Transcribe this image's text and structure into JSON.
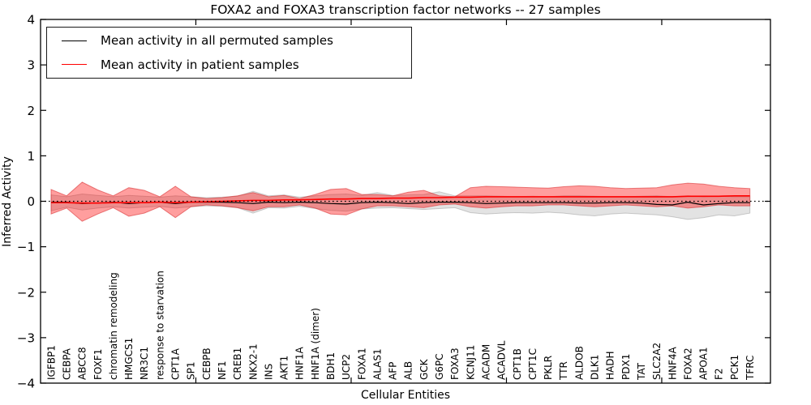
{
  "window": {
    "title": "FOXA2 and FOXA3 transcription factor networks -- 27 samples"
  },
  "legend": {
    "entries": [
      {
        "label": "Mean activity in all permuted samples",
        "color": "#000000"
      },
      {
        "label": "Mean activity in patient samples",
        "color": "#ff0000"
      }
    ],
    "position": "upper left",
    "border_color": "#1a1a1a"
  },
  "colors": {
    "permuted_line": "#000000",
    "patient_line": "#ff0000",
    "permuted_band_fill": "rgba(100,100,100,0.18)",
    "permuted_band_edge": "rgba(100,100,100,0.30)",
    "patient_band_fill": "rgba(255,0,0,0.38)",
    "patient_band_edge": "rgba(214,39,40,0.55)",
    "zero_line": "#000000",
    "axis": "#000000",
    "background": "#ffffff"
  },
  "chart_data": {
    "type": "line",
    "title": "FOXA2 and FOXA3 transcription factor networks -- 27 samples",
    "xlabel": "Cellular Entities",
    "ylabel": "Inferred Activity",
    "ylim": [
      -4,
      4
    ],
    "yticks": [
      -4,
      -3,
      -2,
      -1,
      0,
      1,
      2,
      3,
      4
    ],
    "xlim": [
      0,
      47
    ],
    "xticks": [
      10,
      20,
      30,
      40
    ],
    "grid": false,
    "legend_position": "upper left",
    "zero_reference_line": {
      "y": 0,
      "style": "dotted",
      "color": "#000000"
    },
    "categories": [
      "IGFBP1",
      "CEBPA",
      "ABCC8",
      "FOXF1",
      "chromatin remodeling",
      "HMGCS1",
      "NR3C1",
      "response to starvation",
      "CPT1A",
      "SP1",
      "CEBPB",
      "NF1",
      "CREB1",
      "NKX2-1",
      "INS",
      "AKT1",
      "HNF1A",
      "HNF1A (dimer)",
      "BDH1",
      "UCP2",
      "FOXA1",
      "ALAS1",
      "AFP",
      "ALB",
      "GCK",
      "G6PC",
      "FOXA3",
      "KCNJ11",
      "ACADM",
      "ACADVL",
      "CPT1B",
      "CPT1C",
      "PKLR",
      "TTR",
      "ALDOB",
      "DLK1",
      "HADH",
      "PDX1",
      "TAT",
      "SLC2A2",
      "HNF4A",
      "FOXA2",
      "APOA1",
      "F2",
      "PCK1",
      "TFRC"
    ],
    "series": [
      {
        "name": "Mean activity in all permuted samples",
        "color": "#000000",
        "width": 1.2,
        "values": [
          -0.02,
          -0.02,
          -0.05,
          -0.04,
          -0.02,
          -0.05,
          -0.03,
          -0.02,
          -0.05,
          -0.02,
          -0.02,
          -0.02,
          -0.03,
          -0.05,
          -0.02,
          -0.03,
          -0.02,
          -0.03,
          -0.05,
          -0.06,
          -0.03,
          -0.02,
          -0.03,
          -0.05,
          -0.03,
          -0.02,
          -0.02,
          -0.03,
          -0.05,
          -0.04,
          -0.03,
          -0.03,
          -0.03,
          -0.03,
          -0.04,
          -0.04,
          -0.03,
          -0.03,
          -0.04,
          -0.07,
          -0.08,
          -0.02,
          -0.08,
          -0.05,
          -0.03,
          -0.03
        ]
      },
      {
        "name": "Mean activity in patient samples",
        "color": "#ff0000",
        "width": 1.6,
        "values": [
          -0.03,
          -0.03,
          -0.04,
          -0.04,
          -0.03,
          -0.03,
          -0.03,
          -0.02,
          -0.03,
          -0.02,
          -0.01,
          0.0,
          0.01,
          0.02,
          0.02,
          0.03,
          0.03,
          0.04,
          0.05,
          0.05,
          0.06,
          0.06,
          0.07,
          0.07,
          0.08,
          0.08,
          0.09,
          0.09,
          0.1,
          0.1,
          0.1,
          0.1,
          0.1,
          0.1,
          0.1,
          0.1,
          0.1,
          0.1,
          0.1,
          0.1,
          0.1,
          0.11,
          0.11,
          0.11,
          0.12,
          0.12
        ]
      }
    ],
    "bands": [
      {
        "name": "permuted-activity-range",
        "hi": [
          0.14,
          0.1,
          0.16,
          0.13,
          0.1,
          0.13,
          0.11,
          0.09,
          0.12,
          0.1,
          0.08,
          0.09,
          0.11,
          0.22,
          0.12,
          0.14,
          0.09,
          0.12,
          0.15,
          0.16,
          0.13,
          0.19,
          0.13,
          0.14,
          0.15,
          0.21,
          0.12,
          0.12,
          0.12,
          0.11,
          0.1,
          0.11,
          0.1,
          0.12,
          0.12,
          0.11,
          0.1,
          0.1,
          0.11,
          0.12,
          0.1,
          0.12,
          0.1,
          0.11,
          0.1,
          0.1
        ],
        "lo": [
          -0.21,
          -0.13,
          -0.19,
          -0.15,
          -0.12,
          -0.15,
          -0.13,
          -0.11,
          -0.15,
          -0.12,
          -0.1,
          -0.11,
          -0.14,
          -0.26,
          -0.14,
          -0.15,
          -0.11,
          -0.16,
          -0.2,
          -0.22,
          -0.17,
          -0.15,
          -0.14,
          -0.16,
          -0.18,
          -0.16,
          -0.14,
          -0.25,
          -0.28,
          -0.26,
          -0.25,
          -0.26,
          -0.24,
          -0.26,
          -0.3,
          -0.32,
          -0.28,
          -0.26,
          -0.28,
          -0.3,
          -0.34,
          -0.4,
          -0.36,
          -0.3,
          -0.32,
          -0.26
        ]
      },
      {
        "name": "patient-activity-range",
        "hi": [
          0.26,
          0.12,
          0.42,
          0.25,
          0.12,
          0.3,
          0.24,
          0.1,
          0.33,
          0.1,
          0.06,
          0.08,
          0.12,
          0.19,
          0.1,
          0.13,
          0.06,
          0.15,
          0.26,
          0.28,
          0.15,
          0.15,
          0.12,
          0.2,
          0.24,
          0.12,
          0.1,
          0.3,
          0.33,
          0.32,
          0.31,
          0.3,
          0.29,
          0.32,
          0.34,
          0.33,
          0.3,
          0.28,
          0.29,
          0.3,
          0.36,
          0.4,
          0.38,
          0.33,
          0.3,
          0.28
        ],
        "lo": [
          -0.28,
          -0.15,
          -0.44,
          -0.28,
          -0.14,
          -0.33,
          -0.26,
          -0.12,
          -0.36,
          -0.12,
          -0.08,
          -0.1,
          -0.14,
          -0.21,
          -0.12,
          -0.12,
          -0.08,
          -0.15,
          -0.28,
          -0.3,
          -0.17,
          -0.1,
          -0.1,
          -0.12,
          -0.14,
          -0.08,
          -0.06,
          -0.12,
          -0.15,
          -0.12,
          -0.1,
          -0.1,
          -0.08,
          -0.08,
          -0.1,
          -0.12,
          -0.1,
          -0.08,
          -0.1,
          -0.12,
          -0.1,
          -0.15,
          -0.12,
          -0.08,
          -0.1,
          -0.1
        ]
      }
    ]
  }
}
